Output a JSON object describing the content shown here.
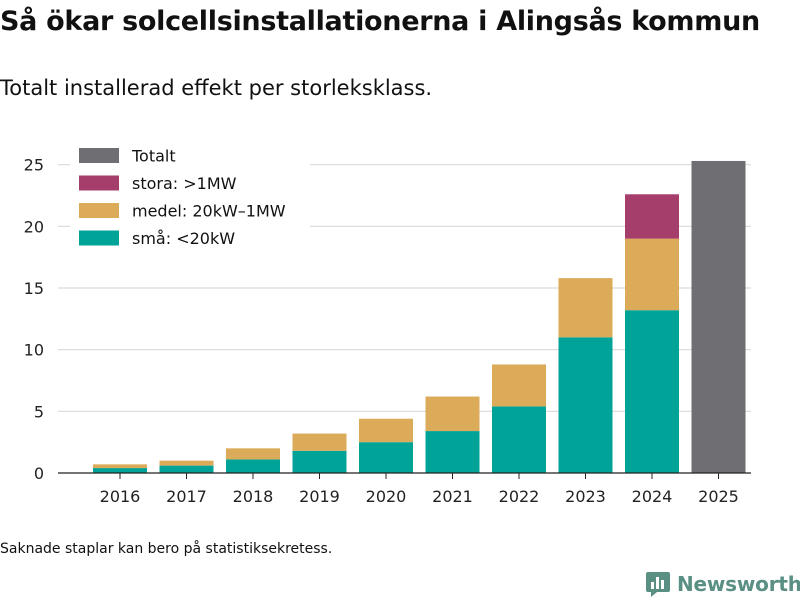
{
  "title": "Så ökar solcellsinstallationerna i Alingsås kommun",
  "subtitle": "Totalt installerad effekt per storleksklass.",
  "footnote": "Saknade staplar kan bero på statistiksekretess.",
  "brand": {
    "name": "Newsworthy",
    "icon": "bar-chart-logo-icon"
  },
  "colors": {
    "sma": "#00a398",
    "medel": "#dbab59",
    "stora": "#a53e6a",
    "total": "#6e6e73",
    "grid": "#d9d9d9",
    "axis": "#222222"
  },
  "chart_data": {
    "type": "bar",
    "stacked": true,
    "title": "Så ökar solcellsinstallationerna i Alingsås kommun",
    "subtitle": "Totalt installerad effekt per storleksklass.",
    "xlabel": "",
    "ylabel": "",
    "ylim": [
      0,
      27
    ],
    "yticks": [
      0,
      5,
      10,
      15,
      20,
      25
    ],
    "grid": true,
    "legend_position": "top-left",
    "categories": [
      "2016",
      "2017",
      "2018",
      "2019",
      "2020",
      "2021",
      "2022",
      "2023",
      "2024",
      "2025"
    ],
    "series": [
      {
        "name": "Totalt",
        "key": "total",
        "values": [
          null,
          null,
          null,
          null,
          null,
          null,
          null,
          null,
          null,
          25.3
        ]
      },
      {
        "name": "stora: >1MW",
        "key": "stora",
        "values": [
          null,
          null,
          null,
          null,
          null,
          null,
          null,
          null,
          3.6,
          null
        ]
      },
      {
        "name": "medel: 20kW–1MW",
        "key": "medel",
        "values": [
          0.3,
          0.4,
          0.9,
          1.4,
          1.9,
          2.8,
          3.4,
          4.8,
          5.8,
          null
        ]
      },
      {
        "name": "små: <20kW",
        "key": "sma",
        "values": [
          0.4,
          0.6,
          1.1,
          1.8,
          2.5,
          3.4,
          5.4,
          11.0,
          13.2,
          null
        ]
      }
    ]
  }
}
